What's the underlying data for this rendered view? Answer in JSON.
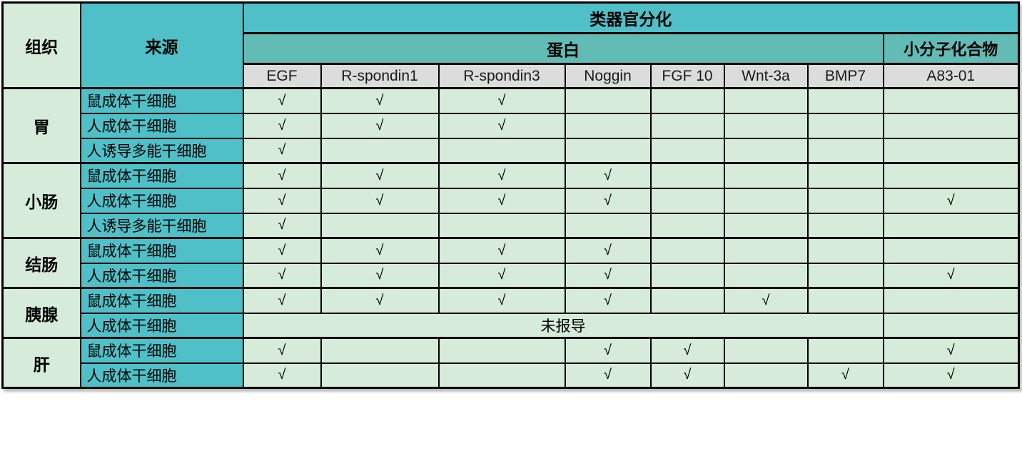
{
  "table": {
    "col_headers": {
      "tissue": "组织",
      "source": "来源",
      "organoid_differentiation": "类器官分化",
      "protein": "蛋白",
      "small_molecule": "小分子化合物",
      "factors": [
        "EGF",
        "R-spondin1",
        "R-spondin3",
        "Noggin",
        "FGF 10",
        "Wnt-3a",
        "BMP7",
        "A83-01"
      ]
    },
    "check_symbol": "√",
    "not_reported_label": "未报导",
    "rows": [
      {
        "tissue": "胃",
        "rowspan": 3,
        "source": "鼠成体干细胞",
        "checks": [
          "√",
          "√",
          "√",
          "",
          "",
          "",
          "",
          ""
        ]
      },
      {
        "source": "人成体干细胞",
        "checks": [
          "√",
          "√",
          "√",
          "",
          "",
          "",
          "",
          ""
        ]
      },
      {
        "source": "人诱导多能干细胞",
        "checks": [
          "√",
          "",
          "",
          "",
          "",
          "",
          "",
          ""
        ]
      },
      {
        "tissue": "小肠",
        "rowspan": 3,
        "source": "鼠成体干细胞",
        "checks": [
          "√",
          "√",
          "√",
          "√",
          "",
          "",
          "",
          ""
        ]
      },
      {
        "source": "人成体干细胞",
        "checks": [
          "√",
          "√",
          "√",
          "√",
          "",
          "",
          "",
          "√"
        ]
      },
      {
        "source": "人诱导多能干细胞",
        "checks": [
          "√",
          "",
          "",
          "",
          "",
          "",
          "",
          ""
        ]
      },
      {
        "tissue": "结肠",
        "rowspan": 2,
        "source": "鼠成体干细胞",
        "checks": [
          "√",
          "√",
          "√",
          "√",
          "",
          "",
          "",
          ""
        ]
      },
      {
        "source": "人成体干细胞",
        "checks": [
          "√",
          "√",
          "√",
          "√",
          "",
          "",
          "",
          "√"
        ]
      },
      {
        "tissue": "胰腺",
        "rowspan": 2,
        "source": "鼠成体干细胞",
        "checks": [
          "√",
          "√",
          "√",
          "√",
          "",
          "√",
          "",
          ""
        ]
      },
      {
        "source": "人成体干细胞",
        "note": "未报导",
        "note_span": 7,
        "checks": [
          ""
        ]
      },
      {
        "tissue": "肝",
        "rowspan": 2,
        "source": "鼠成体干细胞",
        "checks": [
          "√",
          "",
          "",
          "√",
          "√",
          "",
          "",
          "√"
        ]
      },
      {
        "source": "人成体干细胞",
        "checks": [
          "√",
          "",
          "",
          "√",
          "√",
          "",
          "√",
          "√"
        ]
      }
    ],
    "colors": {
      "teal_bright": "#4fc0c7",
      "teal_muted": "#62bbb4",
      "light_green": "#d6ebd9",
      "gray_header": "#dcdcdc",
      "border": "#000000"
    }
  }
}
